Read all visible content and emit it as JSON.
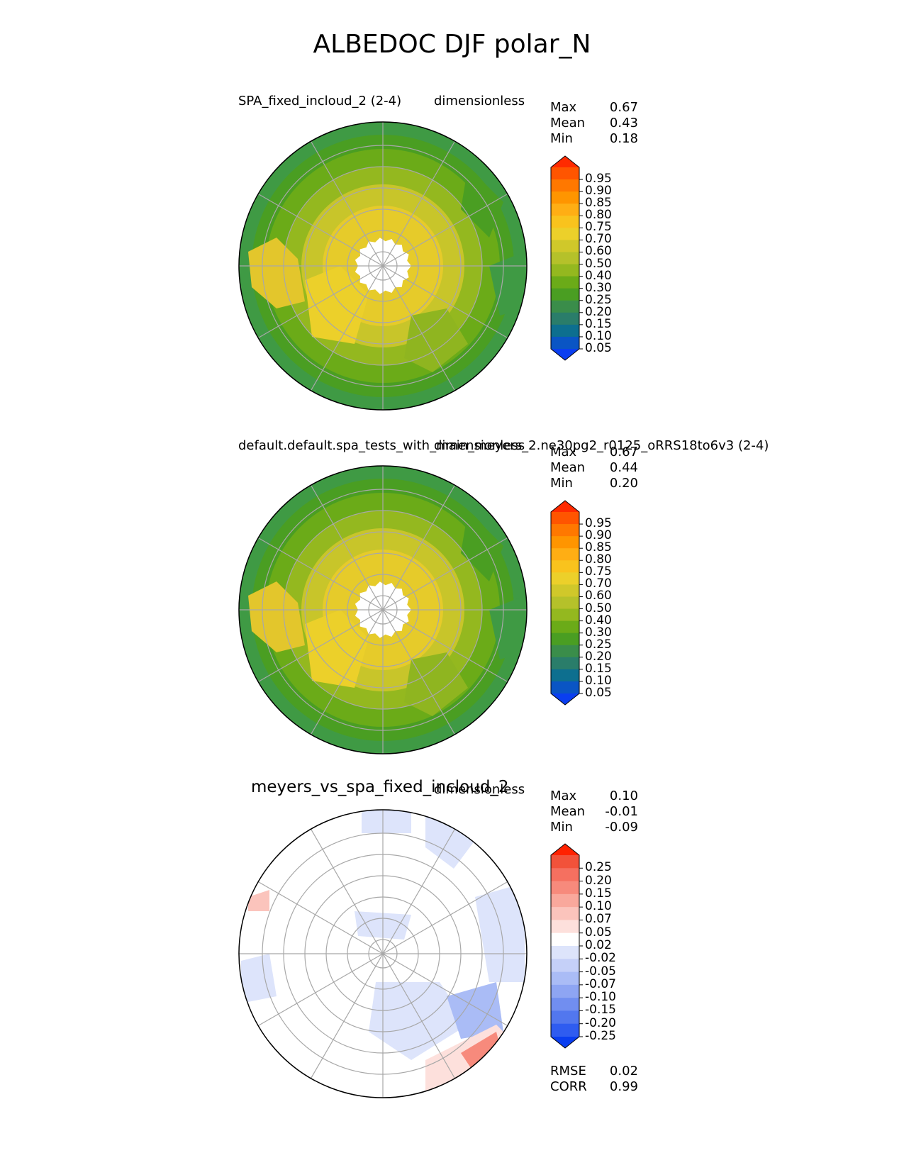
{
  "page_title": "ALBEDOC DJF polar_N",
  "panels": [
    {
      "id": "test",
      "name_label": "SPA_fixed_incloud_2 (2-4)",
      "units_label": "dimensionless",
      "stats": [
        {
          "label": "Max",
          "value": "0.67"
        },
        {
          "label": "Mean",
          "value": "0.43"
        },
        {
          "label": "Min",
          "value": "0.18"
        }
      ]
    },
    {
      "id": "ref",
      "name_label": "default.default.spa_tests_with_main_meyers_2.ne30pg2_r0125_oRRS18to6v3 (2-4)",
      "units_label": "dimensionless",
      "stats": [
        {
          "label": "Max",
          "value": "0.67"
        },
        {
          "label": "Mean",
          "value": "0.44"
        },
        {
          "label": "Min",
          "value": "0.20"
        }
      ]
    },
    {
      "id": "diff",
      "name_label": "meyers_vs_spa_fixed_incloud_2",
      "units_label": "dimensionless",
      "stats": [
        {
          "label": "Max",
          "value": "0.10"
        },
        {
          "label": "Mean",
          "value": "-0.01"
        },
        {
          "label": "Min",
          "value": "-0.09"
        }
      ],
      "metrics": [
        {
          "label": "RMSE",
          "value": "0.02"
        },
        {
          "label": "CORR",
          "value": "0.99"
        }
      ]
    }
  ],
  "colorbars": {
    "albedo": {
      "ticks": [
        "0.95",
        "0.90",
        "0.85",
        "0.80",
        "0.75",
        "0.70",
        "0.60",
        "0.50",
        "0.40",
        "0.30",
        "0.25",
        "0.20",
        "0.15",
        "0.10",
        "0.05"
      ],
      "colors": [
        "#ff2a00",
        "#ff5500",
        "#ff7800",
        "#ff9500",
        "#ffae14",
        "#f9c31d",
        "#ecd02a",
        "#d0c82a",
        "#b5c12a",
        "#94b81f",
        "#6bab18",
        "#4a9e22",
        "#3a8d4a",
        "#2a7d6a",
        "#0d6f8f",
        "#0a55c4",
        "#0a3ef0"
      ]
    },
    "difference": {
      "ticks": [
        "0.25",
        "0.20",
        "0.15",
        "0.10",
        "0.07",
        "0.05",
        "0.02",
        "-0.02",
        "-0.05",
        "-0.07",
        "-0.10",
        "-0.15",
        "-0.20",
        "-0.25"
      ],
      "colors": [
        "#ff2200",
        "#f2523a",
        "#f57060",
        "#f78a7c",
        "#f9a89c",
        "#fbc4bc",
        "#fde0dc",
        "#ffffff",
        "#dde4fb",
        "#c5d0f8",
        "#aabcf6",
        "#8ea5f3",
        "#718ef0",
        "#5277ee",
        "#2f5cf0",
        "#0a3ef0"
      ]
    }
  },
  "chart_data": [
    {
      "type": "heatmap",
      "projection": "polar stereographic, North Pole",
      "title": "SPA_fixed_incloud_2 (2-4)",
      "units": "dimensionless",
      "stats": {
        "max": 0.67,
        "mean": 0.43,
        "min": 0.18
      },
      "colorbar_levels": [
        0.05,
        0.1,
        0.15,
        0.2,
        0.25,
        0.3,
        0.4,
        0.5,
        0.6,
        0.7,
        0.75,
        0.8,
        0.85,
        0.9,
        0.95
      ],
      "colormap": "blue-green-yellow-red",
      "grid": true
    },
    {
      "type": "heatmap",
      "projection": "polar stereographic, North Pole",
      "title": "default.default.spa_tests_with_main_meyers_2.ne30pg2_r0125_oRRS18to6v3 (2-4)",
      "units": "dimensionless",
      "stats": {
        "max": 0.67,
        "mean": 0.44,
        "min": 0.2
      },
      "colorbar_levels": [
        0.05,
        0.1,
        0.15,
        0.2,
        0.25,
        0.3,
        0.4,
        0.5,
        0.6,
        0.7,
        0.75,
        0.8,
        0.85,
        0.9,
        0.95
      ],
      "colormap": "blue-green-yellow-red",
      "grid": true
    },
    {
      "type": "heatmap",
      "projection": "polar stereographic, North Pole",
      "title": "meyers_vs_spa_fixed_incloud_2",
      "units": "dimensionless",
      "stats": {
        "max": 0.1,
        "mean": -0.01,
        "min": -0.09
      },
      "metrics": {
        "rmse": 0.02,
        "corr": 0.99
      },
      "colorbar_levels": [
        -0.25,
        -0.2,
        -0.15,
        -0.1,
        -0.07,
        -0.05,
        -0.02,
        0.02,
        0.05,
        0.07,
        0.1,
        0.15,
        0.2,
        0.25
      ],
      "colormap": "blue-white-red",
      "grid": true
    }
  ]
}
